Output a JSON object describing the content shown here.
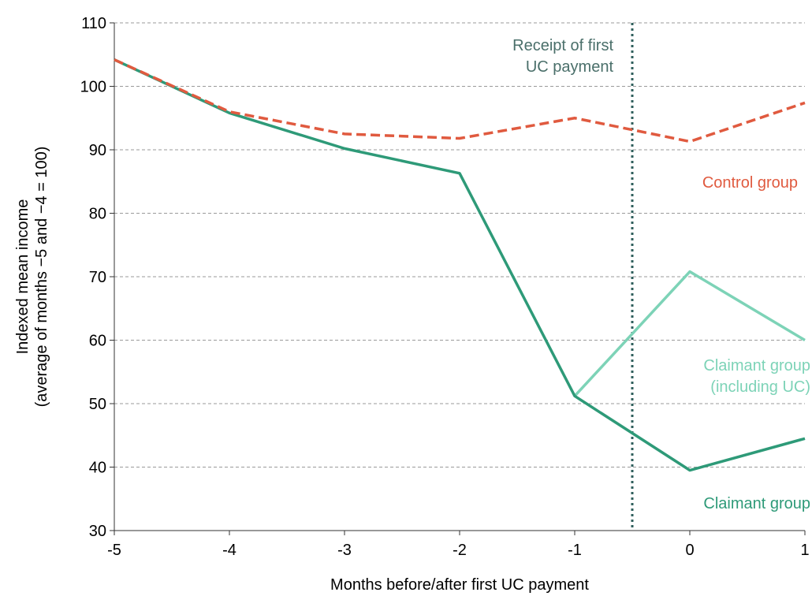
{
  "chart_data": {
    "type": "line",
    "xlabel": "Months before/after first UC payment",
    "ylabel_line1": "Indexed mean income",
    "ylabel_line2": "(average of months −5 and −4 = 100)",
    "x": [
      -5,
      -4,
      -3,
      -2,
      -1,
      0,
      1
    ],
    "xlim": [
      -5,
      1
    ],
    "ylim": [
      30,
      110
    ],
    "yticks": [
      30,
      40,
      50,
      60,
      70,
      80,
      90,
      100,
      110
    ],
    "grid": true,
    "series": [
      {
        "name": "Control group",
        "color": "#e05a3f",
        "dash": "dashed",
        "x": [
          -5,
          -4,
          -3,
          -2,
          -1,
          0,
          1
        ],
        "values": [
          104.2,
          96.0,
          92.5,
          91.8,
          95.0,
          91.3,
          97.4
        ]
      },
      {
        "name": "Claimant group",
        "color": "#2e9a78",
        "dash": "solid",
        "x": [
          -5,
          -4,
          -3,
          -2,
          -1,
          0,
          1
        ],
        "values": [
          104.2,
          95.8,
          90.2,
          86.3,
          51.2,
          39.5,
          44.5
        ]
      },
      {
        "name": "Claimant group (including UC)",
        "color": "#7dd3b7",
        "dash": "solid",
        "x": [
          -1,
          0,
          1
        ],
        "values": [
          51.2,
          70.8,
          60.0
        ]
      }
    ],
    "vline": {
      "x": -0.5,
      "color": "#2f5f5c",
      "dash": "dotted"
    },
    "annotations": [
      {
        "lines": [
          "Receipt of first",
          "UC payment"
        ],
        "color": "#4a6f6a"
      },
      {
        "lines": [
          "Control group"
        ],
        "color": "#e05a3f"
      },
      {
        "lines": [
          "Claimant group",
          "(including UC)"
        ],
        "color": "#7dd3b7"
      },
      {
        "lines": [
          "Claimant group"
        ],
        "color": "#2e9a78"
      }
    ]
  }
}
